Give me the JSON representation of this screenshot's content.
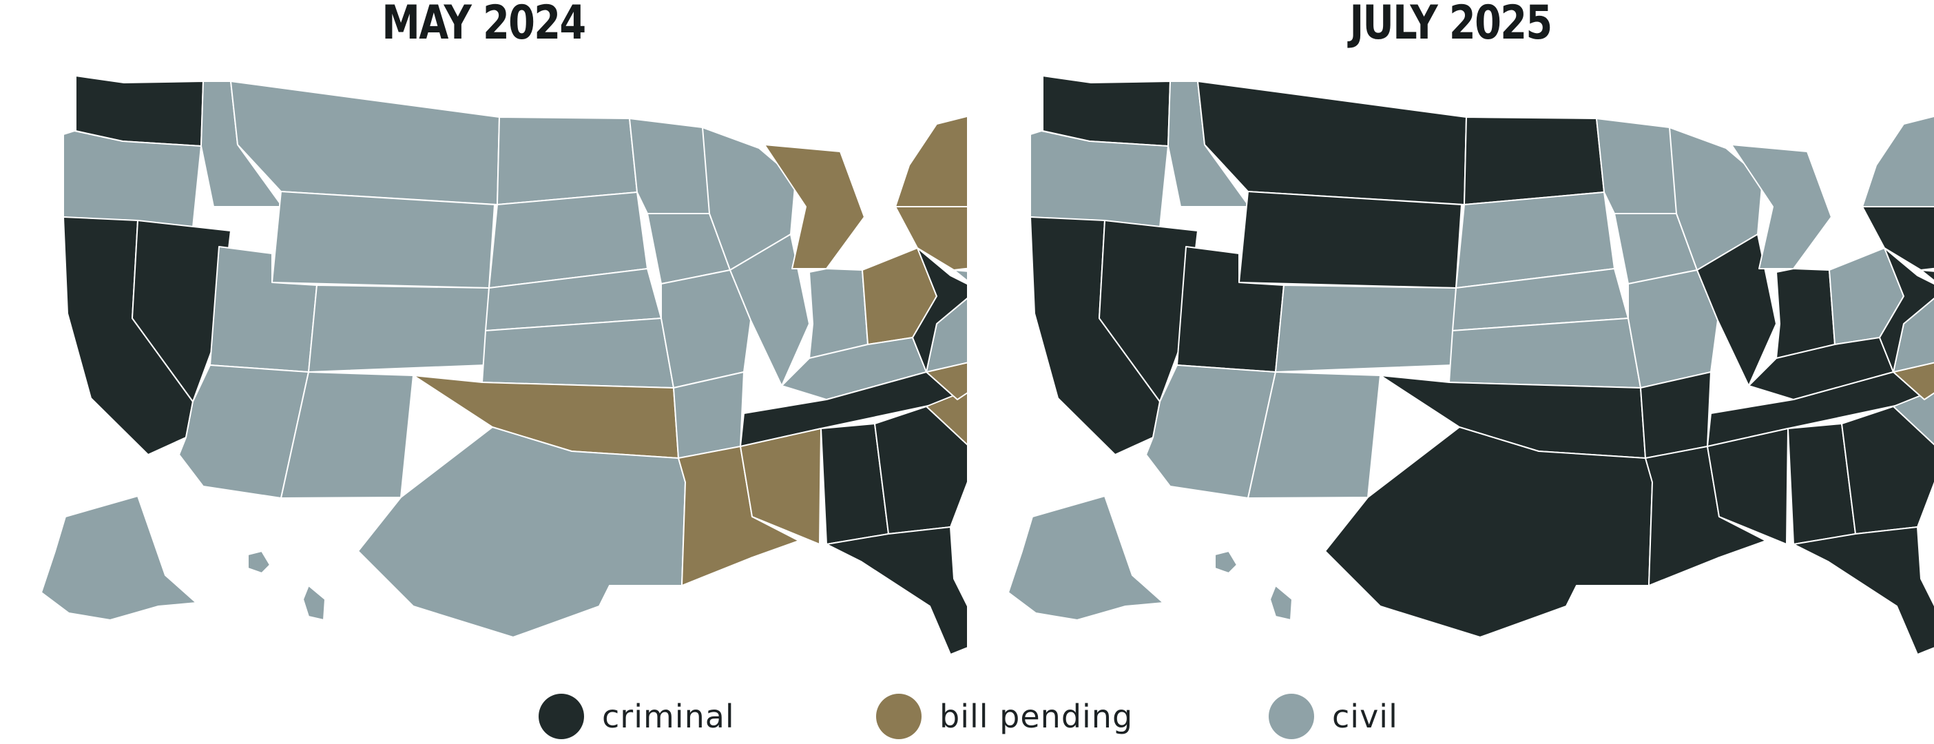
{
  "panels": [
    {
      "title": "MAY 2024"
    },
    {
      "title": "JULY 2025"
    }
  ],
  "legend": [
    {
      "key": "criminal",
      "label": "criminal",
      "color": "#202a2a"
    },
    {
      "key": "pending",
      "label": "bill pending",
      "color": "#8c7a52"
    },
    {
      "key": "civil",
      "label": "civil",
      "color": "#8fa2a7"
    }
  ],
  "status": {
    "may_2024": {
      "WA": "criminal",
      "CA": "criminal",
      "NV": "criminal",
      "TN": "criminal",
      "GA": "criminal",
      "AL": "criminal",
      "FL": "criminal",
      "WV": "criminal",
      "MI": "pending",
      "OH": "pending",
      "PA": "pending",
      "NY": "pending",
      "NH": "pending",
      "NJ": "pending",
      "OK": "pending",
      "LA": "pending",
      "MS": "pending",
      "SC": "pending",
      "NC": "pending"
    },
    "july_2025": {
      "WA": "criminal",
      "CA": "criminal",
      "NV": "criminal",
      "UT": "criminal",
      "MT": "criminal",
      "ND": "criminal",
      "WY": "criminal",
      "IL": "criminal",
      "IN": "criminal",
      "KY": "criminal",
      "TN": "criminal",
      "AR": "criminal",
      "OK": "criminal",
      "TX": "criminal",
      "LA": "criminal",
      "MS": "criminal",
      "AL": "criminal",
      "GA": "criminal",
      "FL": "criminal",
      "WV": "criminal",
      "PA": "criminal",
      "MD": "criminal",
      "DE": "criminal",
      "NH": "criminal",
      "NC": "pending",
      "NJ": "pending"
    }
  }
}
